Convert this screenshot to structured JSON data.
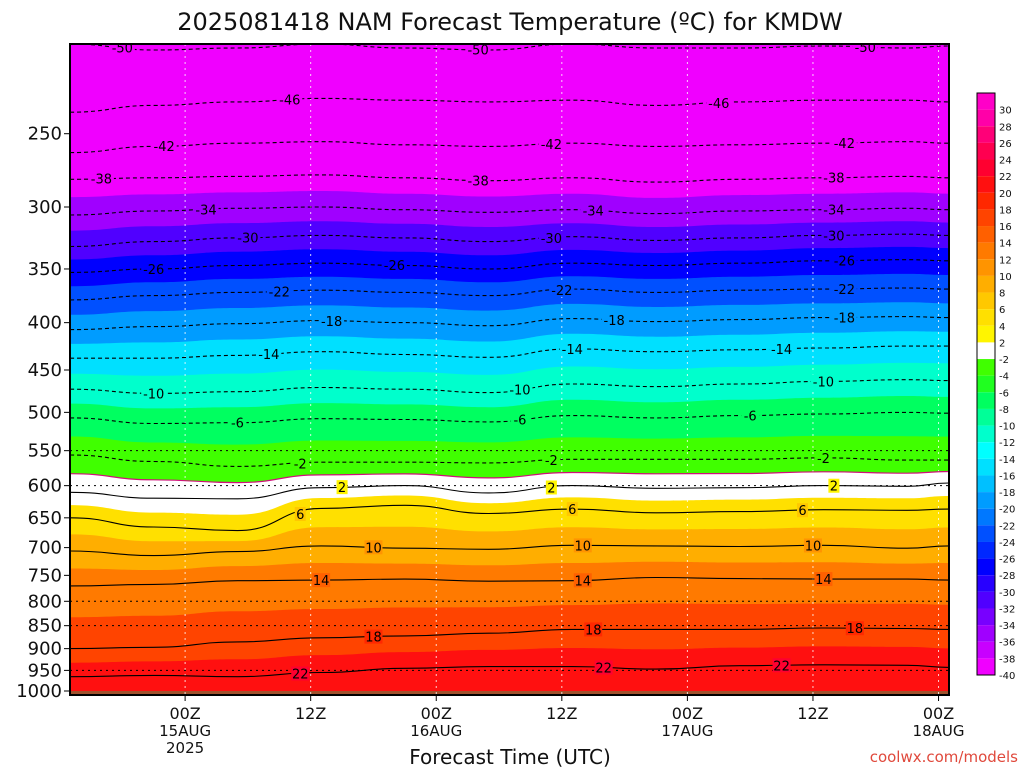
{
  "chart_data": {
    "type": "heatmap",
    "title": "2025081418 NAM Forecast Temperature (ºC) for KMDW",
    "xlabel": "Forecast Time (UTC)",
    "ylabel": "",
    "credit": "coolwx.com/models",
    "y_axis": {
      "scale": "log-pressure",
      "range": [
        1010,
        200
      ],
      "ticks": [
        250,
        300,
        350,
        400,
        450,
        500,
        550,
        600,
        650,
        700,
        750,
        800,
        850,
        900,
        950,
        1000
      ]
    },
    "x_axis": {
      "range_hours": [
        -11,
        73
      ],
      "ticks": [
        {
          "hour": 0,
          "label": "00Z",
          "sub": "15AUG",
          "sub2": "2025"
        },
        {
          "hour": 12,
          "label": "12Z",
          "sub": "",
          "sub2": ""
        },
        {
          "hour": 24,
          "label": "00Z",
          "sub": "16AUG",
          "sub2": ""
        },
        {
          "hour": 36,
          "label": "12Z",
          "sub": "",
          "sub2": ""
        },
        {
          "hour": 48,
          "label": "00Z",
          "sub": "17AUG",
          "sub2": ""
        },
        {
          "hour": 60,
          "label": "12Z",
          "sub": "",
          "sub2": ""
        },
        {
          "hour": 72,
          "label": "00Z",
          "sub": "18AUG",
          "sub2": ""
        }
      ]
    },
    "dotted_pressure_levels": [
      550,
      600,
      800,
      850,
      950
    ],
    "surface_pressure": 1000,
    "colorbar": {
      "labels": [
        30,
        28,
        26,
        24,
        22,
        20,
        18,
        16,
        14,
        12,
        10,
        8,
        6,
        4,
        2,
        -2,
        -4,
        -6,
        -8,
        -10,
        -12,
        -14,
        -16,
        -18,
        -20,
        -22,
        -24,
        -26,
        -28,
        -30,
        -32,
        -34,
        -36,
        -38,
        -40
      ],
      "colors": [
        "#ff00a8",
        "#ff0078",
        "#ff0050",
        "#ff0030",
        "#ff1010",
        "#ff2800",
        "#ff4400",
        "#ff6000",
        "#ff7a00",
        "#ff9400",
        "#ffae00",
        "#ffc800",
        "#ffe000",
        "#fff500",
        "#ffffff",
        "#40ff00",
        "#20ff20",
        "#00ff60",
        "#00ff98",
        "#00ffcc",
        "#00ffff",
        "#00e0ff",
        "#00c0ff",
        "#009cff",
        "#0078ff",
        "#0050ff",
        "#0028ff",
        "#0000ff",
        "#2800ff",
        "#5000ff",
        "#7800ff",
        "#a000ff",
        "#c800ff",
        "#f000ff"
      ]
    },
    "contour_levels": [
      {
        "t": -50,
        "p": [
          200,
          203,
          202,
          200,
          202,
          203,
          200,
          202,
          202,
          201,
          202,
          201
        ]
      },
      {
        "t": -46,
        "p": [
          237,
          233,
          231,
          229,
          230,
          231,
          230,
          233,
          231,
          230,
          230,
          231
        ]
      },
      {
        "t": -42,
        "p": [
          262,
          258,
          256,
          255,
          257,
          258,
          256,
          258,
          257,
          256,
          255,
          256
        ]
      },
      {
        "t": -38,
        "p": [
          280,
          279,
          278,
          277,
          279,
          281,
          279,
          282,
          280,
          279,
          278,
          279
        ]
      },
      {
        "t": -34,
        "p": [
          306,
          303,
          301,
          300,
          302,
          304,
          302,
          305,
          303,
          302,
          301,
          302
        ]
      },
      {
        "t": -30,
        "p": [
          331,
          327,
          324,
          322,
          324,
          327,
          323,
          326,
          324,
          322,
          321,
          322
        ]
      },
      {
        "t": -26,
        "p": [
          353,
          350,
          347,
          345,
          347,
          350,
          345,
          347,
          345,
          343,
          342,
          343
        ]
      },
      {
        "t": -22,
        "p": [
          378,
          374,
          371,
          369,
          371,
          374,
          368,
          371,
          369,
          368,
          367,
          368
        ]
      },
      {
        "t": -18,
        "p": [
          407,
          404,
          401,
          398,
          400,
          403,
          396,
          399,
          397,
          395,
          394,
          395
        ]
      },
      {
        "t": -14,
        "p": [
          437,
          437,
          434,
          430,
          433,
          436,
          427,
          430,
          428,
          426,
          424,
          424
        ]
      },
      {
        "t": -10,
        "p": [
          472,
          477,
          475,
          470,
          472,
          476,
          466,
          469,
          466,
          463,
          461,
          462
        ]
      },
      {
        "t": -6,
        "p": [
          507,
          514,
          513,
          508,
          509,
          512,
          504,
          507,
          504,
          502,
          500,
          501
        ]
      },
      {
        "t": -2,
        "p": [
          556,
          565,
          572,
          566,
          566,
          567,
          562,
          562,
          562,
          560,
          563,
          563
        ]
      },
      {
        "t": 2,
        "p": [
          610,
          619,
          620,
          603,
          600,
          611,
          600,
          604,
          603,
          600,
          601,
          596
        ]
      },
      {
        "t": 6,
        "p": [
          650,
          665,
          671,
          635,
          630,
          643,
          636,
          642,
          640,
          637,
          638,
          636
        ]
      },
      {
        "t": 10,
        "p": [
          706,
          714,
          707,
          697,
          701,
          703,
          696,
          697,
          698,
          696,
          701,
          697
        ]
      },
      {
        "t": 14,
        "p": [
          770,
          767,
          760,
          759,
          757,
          761,
          760,
          754,
          756,
          757,
          757,
          759
        ]
      },
      {
        "t": 18,
        "p": [
          900,
          897,
          885,
          876,
          872,
          866,
          858,
          858,
          858,
          855,
          856,
          858
        ]
      },
      {
        "t": 22,
        "p": [
          965,
          962,
          965,
          955,
          945,
          941,
          941,
          947,
          939,
          937,
          938,
          943
        ]
      }
    ],
    "contour_hours": [
      -11,
      -3,
      5,
      13,
      21,
      29,
      37,
      45,
      53,
      61,
      69,
      73
    ],
    "contour_labels": [
      {
        "t": -50,
        "hour": -6
      },
      {
        "t": -50,
        "hour": 28
      },
      {
        "t": -50,
        "hour": 65
      },
      {
        "t": -46,
        "hour": 10
      },
      {
        "t": -46,
        "hour": 51
      },
      {
        "t": -42,
        "hour": -2
      },
      {
        "t": -42,
        "hour": 35
      },
      {
        "t": -42,
        "hour": 63
      },
      {
        "t": -38,
        "hour": -8
      },
      {
        "t": -38,
        "hour": 28
      },
      {
        "t": -38,
        "hour": 62
      },
      {
        "t": -34,
        "hour": 2
      },
      {
        "t": -34,
        "hour": 39
      },
      {
        "t": -34,
        "hour": 62
      },
      {
        "t": -30,
        "hour": 6
      },
      {
        "t": -30,
        "hour": 35
      },
      {
        "t": -30,
        "hour": 62
      },
      {
        "t": -26,
        "hour": -3
      },
      {
        "t": -26,
        "hour": 20
      },
      {
        "t": -26,
        "hour": 63
      },
      {
        "t": -22,
        "hour": 9
      },
      {
        "t": -22,
        "hour": 36
      },
      {
        "t": -22,
        "hour": 63
      },
      {
        "t": -18,
        "hour": 14
      },
      {
        "t": -18,
        "hour": 41
      },
      {
        "t": -18,
        "hour": 63
      },
      {
        "t": -14,
        "hour": 8
      },
      {
        "t": -14,
        "hour": 37
      },
      {
        "t": -14,
        "hour": 57
      },
      {
        "t": -10,
        "hour": -3
      },
      {
        "t": -10,
        "hour": 32
      },
      {
        "t": -10,
        "hour": 61
      },
      {
        "t": -6,
        "hour": 5
      },
      {
        "t": -6,
        "hour": 32
      },
      {
        "t": -6,
        "hour": 54
      },
      {
        "t": -2,
        "hour": 11
      },
      {
        "t": -2,
        "hour": 35
      },
      {
        "t": -2,
        "hour": 61
      },
      {
        "t": 2,
        "hour": 15
      },
      {
        "t": 2,
        "hour": 35
      },
      {
        "t": 2,
        "hour": 62
      },
      {
        "t": 6,
        "hour": 11
      },
      {
        "t": 6,
        "hour": 37
      },
      {
        "t": 6,
        "hour": 59
      },
      {
        "t": 10,
        "hour": 18
      },
      {
        "t": 10,
        "hour": 38
      },
      {
        "t": 10,
        "hour": 60
      },
      {
        "t": 14,
        "hour": 13
      },
      {
        "t": 14,
        "hour": 38
      },
      {
        "t": 14,
        "hour": 61
      },
      {
        "t": 18,
        "hour": 18
      },
      {
        "t": 18,
        "hour": 39
      },
      {
        "t": 18,
        "hour": 64
      },
      {
        "t": 22,
        "hour": 11
      },
      {
        "t": 22,
        "hour": 40
      },
      {
        "t": 22,
        "hour": 57
      }
    ]
  }
}
